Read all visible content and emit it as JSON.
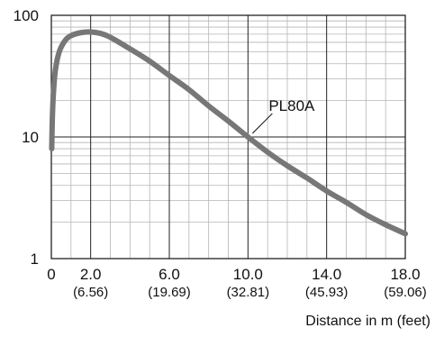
{
  "chart_data": {
    "type": "line",
    "xlabel": "Distance in m (feet)",
    "ylabel": "",
    "y_scale": "log",
    "xlim": [
      0,
      18
    ],
    "ylim": [
      1,
      100
    ],
    "grid": true,
    "x_ticks": [
      {
        "value": 0,
        "label": "0",
        "sublabel": ""
      },
      {
        "value": 2,
        "label": "2.0",
        "sublabel": "(6.56)"
      },
      {
        "value": 6,
        "label": "6.0",
        "sublabel": "(19.69)"
      },
      {
        "value": 10,
        "label": "10.0",
        "sublabel": "(32.81)"
      },
      {
        "value": 14,
        "label": "14.0",
        "sublabel": "(45.93)"
      },
      {
        "value": 18,
        "label": "18.0",
        "sublabel": "(59.06)"
      }
    ],
    "y_ticks": [
      {
        "value": 1,
        "label": "1"
      },
      {
        "value": 10,
        "label": "10"
      },
      {
        "value": 100,
        "label": "100"
      }
    ],
    "series": [
      {
        "name": "PL80A",
        "color": "#777777",
        "x": [
          0.02,
          0.05,
          0.1,
          0.2,
          0.4,
          0.7,
          1.0,
          1.5,
          2.0,
          2.5,
          3.0,
          4.0,
          5.0,
          6.0,
          7.0,
          8.0,
          9.0,
          10.0,
          11.0,
          12.0,
          13.0,
          14.0,
          15.0,
          16.0,
          17.0,
          18.0
        ],
        "y": [
          8,
          14,
          22,
          35,
          50,
          62,
          68,
          72,
          73,
          71,
          66,
          53,
          42,
          32,
          24.5,
          18,
          13.5,
          10,
          7.5,
          5.8,
          4.6,
          3.6,
          2.9,
          2.3,
          1.9,
          1.6
        ]
      }
    ],
    "annotations": [
      {
        "text": "PL80A",
        "series": "PL80A",
        "x": 10.0,
        "y": 10.0
      }
    ]
  }
}
